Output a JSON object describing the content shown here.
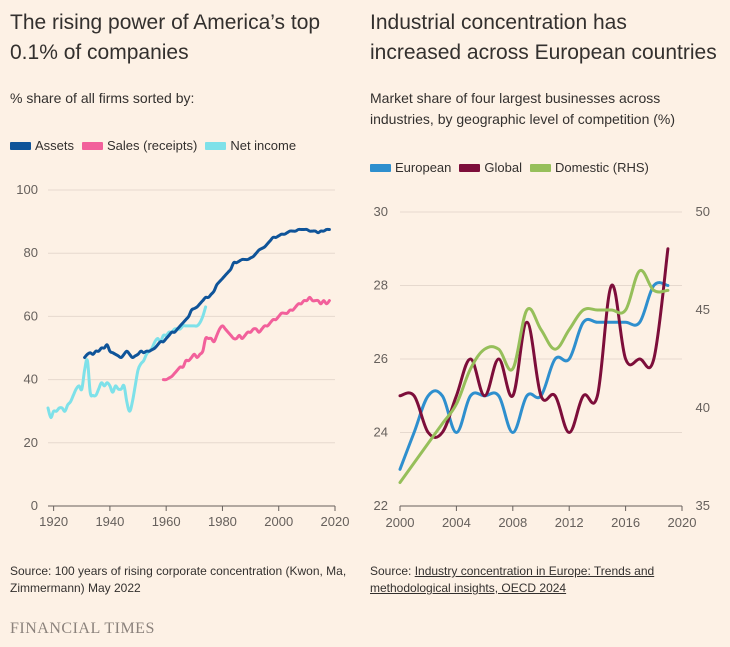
{
  "left": {
    "title": "The rising power of America’s top 0.1% of companies",
    "subtitle": "% share of all firms sorted by:",
    "source": "Source: 100 years of rising corporate concentration (Kwon, Ma, Zimmermann) May 2022"
  },
  "right": {
    "title": "Industrial concentration has increased across European countries",
    "subtitle": "Market share of four largest businesses across industries, by geographic level of competition (%)",
    "source_prefix": "Source: ",
    "source_link": "Industry concentration in Europe: Trends and methodological insights, OECD 2024"
  },
  "brand": "FINANCIAL TIMES",
  "chart_data": [
    {
      "type": "line",
      "ylim": [
        0,
        100
      ],
      "xlim": [
        1918,
        2020
      ],
      "yticks": [
        "0",
        "20",
        "40",
        "60",
        "80",
        "100"
      ],
      "xticks": [
        "1920",
        "1940",
        "1960",
        "1980",
        "2000",
        "2020"
      ],
      "series": [
        {
          "name": "Assets",
          "color": "#0f5499",
          "points": [
            [
              1931,
              47
            ],
            [
              1932,
              48
            ],
            [
              1933,
              48.5
            ],
            [
              1934,
              48
            ],
            [
              1935,
              49
            ],
            [
              1936,
              49
            ],
            [
              1937,
              50
            ],
            [
              1938,
              50
            ],
            [
              1939,
              51
            ],
            [
              1940,
              49
            ],
            [
              1941,
              48.5
            ],
            [
              1942,
              48
            ],
            [
              1943,
              47.5
            ],
            [
              1944,
              47
            ],
            [
              1945,
              48
            ],
            [
              1946,
              49
            ],
            [
              1947,
              48
            ],
            [
              1948,
              47
            ],
            [
              1949,
              47.5
            ],
            [
              1950,
              48
            ],
            [
              1951,
              49
            ],
            [
              1952,
              48.5
            ],
            [
              1953,
              49
            ],
            [
              1954,
              49
            ],
            [
              1955,
              49.5
            ],
            [
              1956,
              50
            ],
            [
              1957,
              51
            ],
            [
              1958,
              52
            ],
            [
              1959,
              52
            ],
            [
              1960,
              53
            ],
            [
              1961,
              54
            ],
            [
              1962,
              55
            ],
            [
              1963,
              55
            ],
            [
              1964,
              56
            ],
            [
              1965,
              57
            ],
            [
              1966,
              58
            ],
            [
              1967,
              59
            ],
            [
              1968,
              60
            ],
            [
              1969,
              62
            ],
            [
              1970,
              62.5
            ],
            [
              1971,
              63
            ],
            [
              1972,
              64
            ],
            [
              1973,
              65
            ],
            [
              1974,
              66
            ],
            [
              1975,
              66
            ],
            [
              1976,
              67
            ],
            [
              1977,
              68
            ],
            [
              1978,
              70
            ],
            [
              1979,
              71
            ],
            [
              1980,
              72
            ],
            [
              1981,
              73
            ],
            [
              1982,
              74
            ],
            [
              1983,
              75
            ],
            [
              1984,
              77
            ],
            [
              1985,
              77
            ],
            [
              1986,
              77.5
            ],
            [
              1987,
              78
            ],
            [
              1988,
              78
            ],
            [
              1989,
              78
            ],
            [
              1990,
              78.5
            ],
            [
              1991,
              79
            ],
            [
              1992,
              80
            ],
            [
              1993,
              81
            ],
            [
              1994,
              81.5
            ],
            [
              1995,
              82
            ],
            [
              1996,
              83
            ],
            [
              1997,
              84
            ],
            [
              1998,
              85
            ],
            [
              1999,
              85
            ],
            [
              2000,
              85.5
            ],
            [
              2001,
              86
            ],
            [
              2002,
              86
            ],
            [
              2003,
              86.5
            ],
            [
              2004,
              87
            ],
            [
              2005,
              87
            ],
            [
              2006,
              87
            ],
            [
              2007,
              87.5
            ],
            [
              2008,
              87.5
            ],
            [
              2009,
              87.5
            ],
            [
              2010,
              87.5
            ],
            [
              2011,
              87
            ],
            [
              2012,
              87
            ],
            [
              2013,
              87
            ],
            [
              2014,
              86.5
            ],
            [
              2015,
              87
            ],
            [
              2016,
              87
            ],
            [
              2017,
              87.5
            ],
            [
              2018,
              87.5
            ]
          ]
        },
        {
          "name": "Sales (receipts)",
          "color": "#f2609b",
          "points": [
            [
              1959,
              40
            ],
            [
              1960,
              40
            ],
            [
              1961,
              40.5
            ],
            [
              1962,
              41
            ],
            [
              1963,
              42
            ],
            [
              1964,
              43
            ],
            [
              1965,
              44
            ],
            [
              1966,
              44
            ],
            [
              1967,
              46
            ],
            [
              1968,
              46
            ],
            [
              1969,
              47
            ],
            [
              1970,
              48
            ],
            [
              1971,
              47
            ],
            [
              1972,
              48
            ],
            [
              1973,
              49
            ],
            [
              1974,
              53
            ],
            [
              1975,
              53
            ],
            [
              1976,
              53
            ],
            [
              1977,
              52
            ],
            [
              1978,
              54
            ],
            [
              1979,
              56
            ],
            [
              1980,
              57
            ],
            [
              1981,
              56
            ],
            [
              1982,
              55
            ],
            [
              1983,
              54
            ],
            [
              1984,
              53
            ],
            [
              1985,
              53
            ],
            [
              1986,
              54
            ],
            [
              1987,
              53
            ],
            [
              1988,
              54
            ],
            [
              1989,
              55
            ],
            [
              1990,
              55
            ],
            [
              1991,
              56
            ],
            [
              1992,
              56
            ],
            [
              1993,
              55
            ],
            [
              1994,
              56
            ],
            [
              1995,
              57
            ],
            [
              1996,
              57
            ],
            [
              1997,
              58
            ],
            [
              1998,
              59
            ],
            [
              1999,
              59
            ],
            [
              2000,
              60
            ],
            [
              2001,
              61
            ],
            [
              2002,
              61
            ],
            [
              2003,
              61
            ],
            [
              2004,
              62
            ],
            [
              2005,
              62
            ],
            [
              2006,
              63
            ],
            [
              2007,
              64
            ],
            [
              2008,
              64
            ],
            [
              2009,
              65
            ],
            [
              2010,
              65
            ],
            [
              2011,
              66
            ],
            [
              2012,
              65
            ],
            [
              2013,
              65
            ],
            [
              2014,
              65
            ],
            [
              2015,
              64
            ],
            [
              2016,
              65
            ],
            [
              2017,
              64
            ],
            [
              2018,
              65
            ]
          ]
        },
        {
          "name": "Net income",
          "color": "#7ee1e9",
          "points": [
            [
              1918,
              31
            ],
            [
              1919,
              28
            ],
            [
              1920,
              30
            ],
            [
              1921,
              30
            ],
            [
              1922,
              31
            ],
            [
              1923,
              31
            ],
            [
              1924,
              30
            ],
            [
              1925,
              32
            ],
            [
              1926,
              33
            ],
            [
              1927,
              35
            ],
            [
              1928,
              37
            ],
            [
              1929,
              38
            ],
            [
              1930,
              37
            ],
            [
              1931,
              43
            ],
            [
              1932,
              46
            ],
            [
              1933,
              36
            ],
            [
              1934,
              35
            ],
            [
              1935,
              35
            ],
            [
              1936,
              37
            ],
            [
              1937,
              39
            ],
            [
              1938,
              38
            ],
            [
              1939,
              39
            ],
            [
              1940,
              38
            ],
            [
              1941,
              36
            ],
            [
              1942,
              38
            ],
            [
              1943,
              37
            ],
            [
              1944,
              37
            ],
            [
              1945,
              38
            ],
            [
              1946,
              33
            ],
            [
              1947,
              30
            ],
            [
              1948,
              33
            ],
            [
              1949,
              38
            ],
            [
              1950,
              43
            ],
            [
              1951,
              45
            ],
            [
              1952,
              46
            ],
            [
              1953,
              48
            ],
            [
              1954,
              49
            ],
            [
              1955,
              50
            ],
            [
              1956,
              52
            ],
            [
              1957,
              53
            ],
            [
              1958,
              52
            ],
            [
              1959,
              54
            ],
            [
              1960,
              54
            ],
            [
              1961,
              55
            ],
            [
              1962,
              55
            ],
            [
              1963,
              56
            ],
            [
              1964,
              56
            ],
            [
              1965,
              56
            ],
            [
              1966,
              57
            ],
            [
              1967,
              57
            ],
            [
              1968,
              57
            ],
            [
              1969,
              57
            ],
            [
              1970,
              57
            ],
            [
              1971,
              57
            ],
            [
              1972,
              58
            ],
            [
              1973,
              60
            ],
            [
              1974,
              63
            ]
          ]
        }
      ]
    },
    {
      "type": "line",
      "xlim": [
        2000,
        2020
      ],
      "ylim": [
        22,
        30
      ],
      "ylim_rhs": [
        35,
        50
      ],
      "yticks": [
        "22",
        "24",
        "26",
        "28",
        "30"
      ],
      "yticks_rhs": [
        "35",
        "40",
        "45",
        "50"
      ],
      "xticks": [
        "2000",
        "2004",
        "2008",
        "2012",
        "2016",
        "2020"
      ],
      "series": [
        {
          "name": "European",
          "color": "#2e8fce",
          "axis": "left",
          "points": [
            [
              2000,
              23
            ],
            [
              2001,
              24
            ],
            [
              2002,
              25
            ],
            [
              2003,
              25
            ],
            [
              2004,
              24
            ],
            [
              2005,
              25
            ],
            [
              2006,
              25
            ],
            [
              2007,
              25
            ],
            [
              2008,
              24
            ],
            [
              2009,
              25
            ],
            [
              2010,
              25
            ],
            [
              2011,
              26
            ],
            [
              2012,
              26
            ],
            [
              2013,
              27
            ],
            [
              2014,
              27
            ],
            [
              2015,
              27
            ],
            [
              2016,
              27
            ],
            [
              2017,
              27
            ],
            [
              2018,
              28
            ],
            [
              2019,
              28
            ]
          ]
        },
        {
          "name": "Global",
          "color": "#7d0e3a",
          "axis": "left",
          "points": [
            [
              2000,
              25
            ],
            [
              2001,
              25
            ],
            [
              2002,
              24
            ],
            [
              2003,
              24
            ],
            [
              2004,
              25
            ],
            [
              2005,
              26
            ],
            [
              2006,
              25
            ],
            [
              2007,
              26
            ],
            [
              2008,
              25
            ],
            [
              2009,
              27
            ],
            [
              2010,
              25
            ],
            [
              2011,
              25
            ],
            [
              2012,
              24
            ],
            [
              2013,
              25
            ],
            [
              2014,
              25
            ],
            [
              2015,
              28
            ],
            [
              2016,
              26
            ],
            [
              2017,
              26
            ],
            [
              2018,
              26
            ],
            [
              2019,
              29
            ]
          ]
        },
        {
          "name": "Domestic (RHS)",
          "color": "#96bf5a",
          "axis": "right",
          "points": [
            [
              2000,
              36.2
            ],
            [
              2001,
              37.2
            ],
            [
              2002,
              38.2
            ],
            [
              2003,
              39.2
            ],
            [
              2004,
              40.2
            ],
            [
              2005,
              42
            ],
            [
              2006,
              43
            ],
            [
              2007,
              43
            ],
            [
              2008,
              42
            ],
            [
              2009,
              45
            ],
            [
              2010,
              44
            ],
            [
              2011,
              43
            ],
            [
              2012,
              44
            ],
            [
              2013,
              45
            ],
            [
              2014,
              45
            ],
            [
              2015,
              45
            ],
            [
              2016,
              45
            ],
            [
              2017,
              47
            ],
            [
              2018,
              46
            ],
            [
              2019,
              46
            ]
          ]
        }
      ]
    }
  ]
}
